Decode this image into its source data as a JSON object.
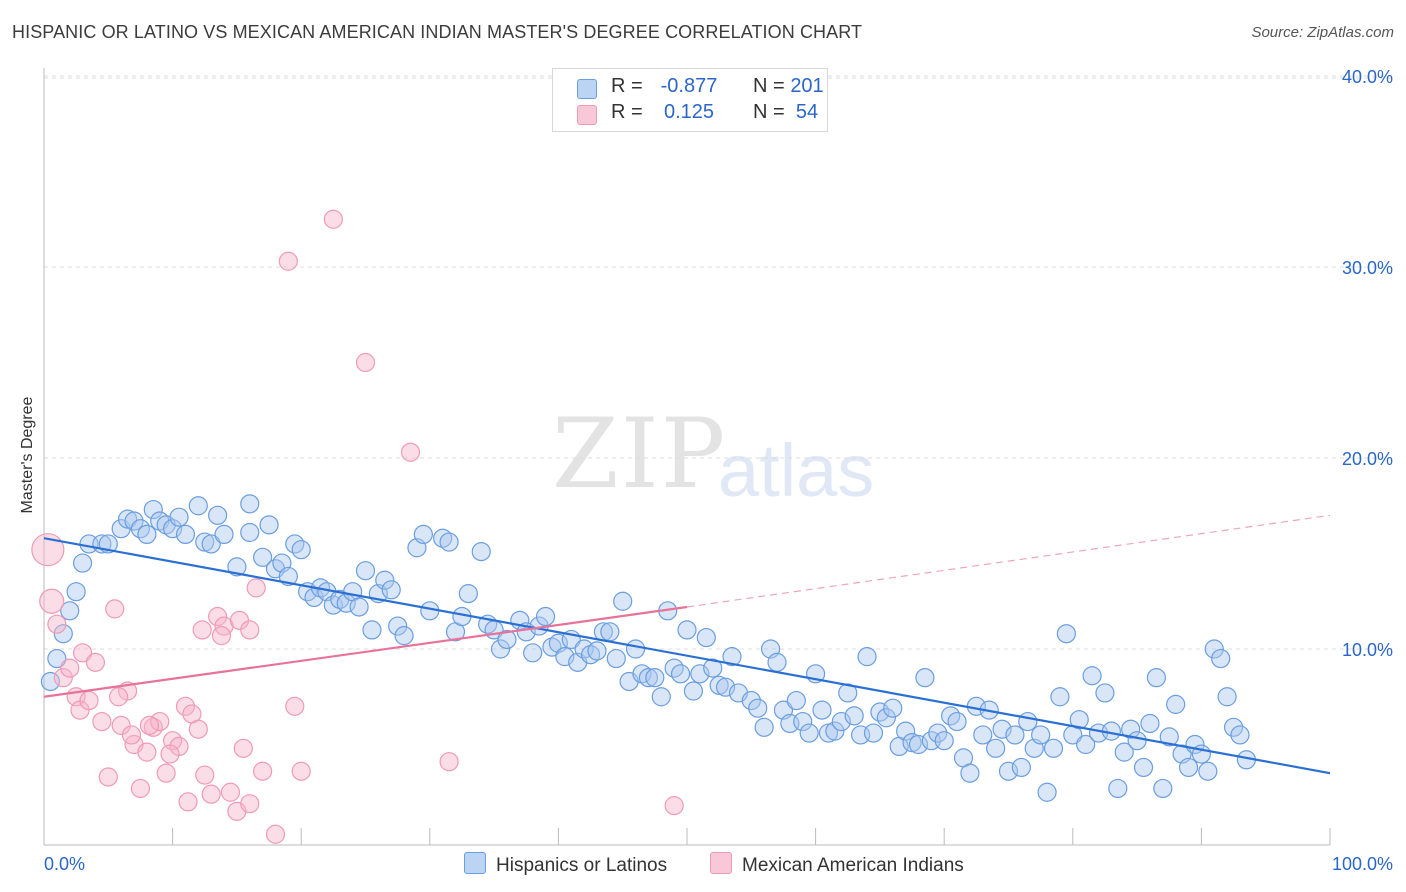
{
  "title": "HISPANIC OR LATINO VS MEXICAN AMERICAN INDIAN MASTER'S DEGREE CORRELATION CHART",
  "source": "Source: ZipAtlas.com",
  "watermark": {
    "zip": "ZIP",
    "atlas": "atlas"
  },
  "legend": {
    "rows": [
      {
        "r_label": "R =",
        "r_value": "-0.877",
        "n_label": "N =",
        "n_value": "201"
      },
      {
        "r_label": "R =",
        "r_value": "0.125",
        "n_label": "N =",
        "n_value": "54"
      }
    ]
  },
  "chart_data": {
    "type": "scatter",
    "title": "HISPANIC OR LATINO VS MEXICAN AMERICAN INDIAN MASTER'S DEGREE CORRELATION CHART",
    "xlabel": "",
    "ylabel": "Master's Degree",
    "xlim": [
      0,
      100
    ],
    "ylim": [
      0,
      40
    ],
    "x_tick_labels": [
      "0.0%",
      "100.0%"
    ],
    "y_tick_labels": [
      "10.0%",
      "20.0%",
      "30.0%",
      "40.0%"
    ],
    "y_ticks": [
      10,
      20,
      30,
      40
    ],
    "grid": "horizontal dashed",
    "legend_placement": "bottom-center",
    "colors": {
      "blue": "#6a9ee0",
      "blue_line": "#2a6fd4",
      "pink": "#f09ab5",
      "pink_line": "#e8729a",
      "tick_label": "#2a66c8"
    },
    "series": [
      {
        "name": "Hispanics or Latinos",
        "color": "#6a9ee0",
        "trend": {
          "x0": 0,
          "y0": 15.8,
          "x1": 100,
          "y1": 3.5
        },
        "points": [
          [
            0.5,
            8.3
          ],
          [
            1,
            9.5
          ],
          [
            1.5,
            10.8
          ],
          [
            2,
            12
          ],
          [
            2.5,
            13
          ],
          [
            3,
            14.5
          ],
          [
            3.5,
            15.5
          ],
          [
            4.5,
            15.5
          ],
          [
            5,
            15.5
          ],
          [
            6,
            16.3
          ],
          [
            6.5,
            16.8
          ],
          [
            7,
            16.7
          ],
          [
            7.5,
            16.3
          ],
          [
            8,
            16
          ],
          [
            8.5,
            17.3
          ],
          [
            9,
            16.7
          ],
          [
            9.5,
            16.5
          ],
          [
            10,
            16.3
          ],
          [
            10.5,
            16.9
          ],
          [
            11,
            16
          ],
          [
            12,
            17.5
          ],
          [
            12.5,
            15.6
          ],
          [
            13,
            15.5
          ],
          [
            13.5,
            17
          ],
          [
            14,
            16
          ],
          [
            15,
            14.3
          ],
          [
            16,
            16.1
          ],
          [
            16,
            17.6
          ],
          [
            17,
            14.8
          ],
          [
            17.5,
            16.5
          ],
          [
            18,
            14.2
          ],
          [
            18.5,
            14.5
          ],
          [
            19,
            13.8
          ],
          [
            19.5,
            15.5
          ],
          [
            20,
            15.2
          ],
          [
            20.5,
            13
          ],
          [
            21,
            12.7
          ],
          [
            21.5,
            13.2
          ],
          [
            22,
            13
          ],
          [
            22.5,
            12.3
          ],
          [
            23,
            12.6
          ],
          [
            23.5,
            12.4
          ],
          [
            24,
            13
          ],
          [
            24.5,
            12.2
          ],
          [
            25,
            14.1
          ],
          [
            25.5,
            11
          ],
          [
            26,
            12.9
          ],
          [
            26.5,
            13.6
          ],
          [
            27,
            13.1
          ],
          [
            27.5,
            11.2
          ],
          [
            28,
            10.7
          ],
          [
            29,
            15.3
          ],
          [
            29.5,
            16
          ],
          [
            30,
            12
          ],
          [
            31,
            15.8
          ],
          [
            31.5,
            15.6
          ],
          [
            32,
            10.9
          ],
          [
            32.5,
            11.7
          ],
          [
            33,
            12.9
          ],
          [
            34,
            15.1
          ],
          [
            34.5,
            11.3
          ],
          [
            35,
            11
          ],
          [
            35.5,
            10
          ],
          [
            36,
            10.5
          ],
          [
            37,
            11.5
          ],
          [
            37.5,
            10.9
          ],
          [
            38,
            9.8
          ],
          [
            38.5,
            11.2
          ],
          [
            39,
            11.7
          ],
          [
            39.5,
            10.1
          ],
          [
            40,
            10.3
          ],
          [
            40.5,
            9.6
          ],
          [
            41,
            10.5
          ],
          [
            41.5,
            9.3
          ],
          [
            42,
            10
          ],
          [
            42.5,
            9.7
          ],
          [
            43,
            9.9
          ],
          [
            43.5,
            10.9
          ],
          [
            44,
            10.9
          ],
          [
            44.5,
            9.5
          ],
          [
            45,
            12.5
          ],
          [
            45.5,
            8.3
          ],
          [
            46,
            10
          ],
          [
            46.5,
            8.7
          ],
          [
            47,
            8.5
          ],
          [
            47.5,
            8.5
          ],
          [
            48,
            7.5
          ],
          [
            48.5,
            12
          ],
          [
            49,
            9
          ],
          [
            49.5,
            8.7
          ],
          [
            50,
            11
          ],
          [
            50.5,
            7.8
          ],
          [
            51,
            8.7
          ],
          [
            51.5,
            10.6
          ],
          [
            52,
            9
          ],
          [
            52.5,
            8.1
          ],
          [
            53,
            8
          ],
          [
            53.5,
            9.6
          ],
          [
            54,
            7.7
          ],
          [
            55,
            7.3
          ],
          [
            55.5,
            6.9
          ],
          [
            56,
            5.9
          ],
          [
            56.5,
            10
          ],
          [
            57,
            9.3
          ],
          [
            57.5,
            6.8
          ],
          [
            58,
            6.1
          ],
          [
            58.5,
            7.3
          ],
          [
            59,
            6.2
          ],
          [
            59.5,
            5.6
          ],
          [
            60,
            8.7
          ],
          [
            60.5,
            6.8
          ],
          [
            61,
            5.6
          ],
          [
            61.5,
            5.7
          ],
          [
            62,
            6.2
          ],
          [
            62.5,
            7.7
          ],
          [
            63,
            6.5
          ],
          [
            63.5,
            5.5
          ],
          [
            64,
            9.6
          ],
          [
            64.5,
            5.6
          ],
          [
            65,
            6.7
          ],
          [
            65.5,
            6.4
          ],
          [
            66,
            6.9
          ],
          [
            66.5,
            4.9
          ],
          [
            67,
            5.7
          ],
          [
            67.5,
            5.1
          ],
          [
            68,
            5
          ],
          [
            68.5,
            8.5
          ],
          [
            69,
            5.2
          ],
          [
            69.5,
            5.6
          ],
          [
            70,
            5.2
          ],
          [
            70.5,
            6.5
          ],
          [
            71,
            6.2
          ],
          [
            71.5,
            4.3
          ],
          [
            72,
            3.5
          ],
          [
            72.5,
            7
          ],
          [
            73,
            5.5
          ],
          [
            73.5,
            6.8
          ],
          [
            74,
            4.8
          ],
          [
            74.5,
            5.8
          ],
          [
            75,
            3.6
          ],
          [
            75.5,
            5.5
          ],
          [
            76,
            3.8
          ],
          [
            76.5,
            6.2
          ],
          [
            77,
            4.8
          ],
          [
            77.5,
            5.5
          ],
          [
            78,
            2.5
          ],
          [
            78.5,
            4.8
          ],
          [
            79,
            7.5
          ],
          [
            79.5,
            10.8
          ],
          [
            80,
            5.5
          ],
          [
            80.5,
            6.3
          ],
          [
            81,
            5
          ],
          [
            81.5,
            8.6
          ],
          [
            82,
            5.6
          ],
          [
            82.5,
            7.7
          ],
          [
            83,
            5.7
          ],
          [
            83.5,
            2.7
          ],
          [
            84,
            4.6
          ],
          [
            84.5,
            5.8
          ],
          [
            85,
            5.2
          ],
          [
            85.5,
            3.8
          ],
          [
            86,
            6.1
          ],
          [
            86.5,
            8.5
          ],
          [
            87,
            2.7
          ],
          [
            87.5,
            5.4
          ],
          [
            88,
            7.1
          ],
          [
            88.5,
            4.5
          ],
          [
            89,
            3.8
          ],
          [
            89.5,
            5
          ],
          [
            90,
            4.5
          ],
          [
            90.5,
            3.6
          ],
          [
            91,
            10
          ],
          [
            91.5,
            9.5
          ],
          [
            92,
            7.5
          ],
          [
            92.5,
            5.9
          ],
          [
            93,
            5.5
          ],
          [
            93.5,
            4.2
          ]
        ]
      },
      {
        "name": "Mexican American Indians",
        "color": "#f09ab5",
        "trend": {
          "x0": 0,
          "y0": 7.5,
          "x1": 50,
          "y1": 12.2,
          "dash_to_x": 100,
          "dash_to_y": 17.0
        },
        "points": [
          [
            0.3,
            15.2
          ],
          [
            0.6,
            12.5
          ],
          [
            1,
            11.3
          ],
          [
            1.5,
            8.5
          ],
          [
            2,
            9
          ],
          [
            2.5,
            7.5
          ],
          [
            2.8,
            6.8
          ],
          [
            3,
            9.8
          ],
          [
            3.5,
            7.3
          ],
          [
            4,
            9.3
          ],
          [
            4.5,
            6.2
          ],
          [
            5,
            3.3
          ],
          [
            5.5,
            12.1
          ],
          [
            6,
            6
          ],
          [
            6.5,
            7.8
          ],
          [
            7,
            5
          ],
          [
            7.5,
            2.7
          ],
          [
            8,
            4.6
          ],
          [
            8.5,
            5.9
          ],
          [
            9,
            6.2
          ],
          [
            9.5,
            3.5
          ],
          [
            10,
            5.2
          ],
          [
            10.5,
            4.9
          ],
          [
            11,
            7
          ],
          [
            11.5,
            6.6
          ],
          [
            12,
            5.8
          ],
          [
            12.5,
            3.4
          ],
          [
            13,
            2.4
          ],
          [
            13.5,
            11.7
          ],
          [
            14,
            11.2
          ],
          [
            14.5,
            2.5
          ],
          [
            15,
            1.5
          ],
          [
            15.5,
            4.8
          ],
          [
            16,
            1.9
          ],
          [
            16.5,
            13.2
          ],
          [
            17,
            3.6
          ],
          [
            18,
            0.3
          ],
          [
            19,
            30.3
          ],
          [
            20,
            3.6
          ],
          [
            19.5,
            7
          ],
          [
            22.5,
            32.5
          ],
          [
            25,
            25
          ],
          [
            28.5,
            20.3
          ],
          [
            31.5,
            4.1
          ],
          [
            49,
            1.8
          ],
          [
            12.3,
            11
          ],
          [
            13.8,
            10.7
          ],
          [
            15.2,
            11.5
          ],
          [
            16,
            11
          ],
          [
            5.8,
            7.5
          ],
          [
            6.8,
            5.5
          ],
          [
            8.2,
            6
          ],
          [
            9.8,
            4.5
          ],
          [
            11.2,
            2
          ]
        ]
      }
    ]
  },
  "bottom_legend": {
    "series1": "Hispanics or Latinos",
    "series2": "Mexican American Indians"
  }
}
